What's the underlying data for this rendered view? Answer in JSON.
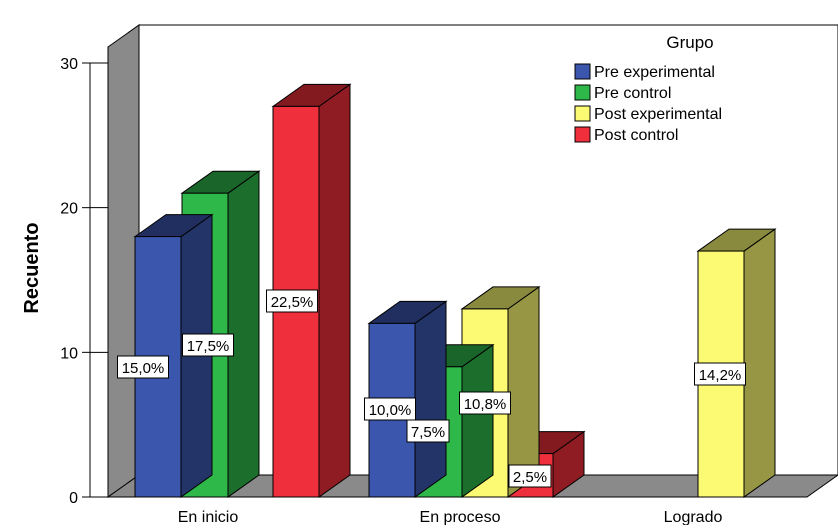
{
  "chart_data": {
    "type": "bar",
    "categories": [
      "En inicio",
      "En proceso",
      "Logrado"
    ],
    "ylabel": "Recuento",
    "ylim": [
      0,
      30
    ],
    "yticks": [
      0,
      10,
      20,
      30
    ],
    "legend": {
      "title": "Grupo",
      "placement": "top-right"
    },
    "series": [
      {
        "name": "Pre experimental",
        "color": "#3a56ad",
        "values": [
          18,
          12,
          null
        ],
        "labels": [
          "15,0%",
          "10,0%",
          null
        ]
      },
      {
        "name": "Pre control",
        "color": "#2fb84a",
        "values": [
          21,
          9,
          null
        ],
        "labels": [
          "17,5%",
          "7,5%",
          null
        ]
      },
      {
        "name": "Post experimental",
        "color": "#fbfa72",
        "values": [
          null,
          13,
          17
        ],
        "labels": [
          null,
          "10,8%",
          "14,2%"
        ]
      },
      {
        "name": "Post control",
        "color": "#ef2f3b",
        "values": [
          27,
          3,
          null
        ],
        "labels": [
          "22,5%",
          "2,5%",
          null
        ]
      }
    ]
  }
}
